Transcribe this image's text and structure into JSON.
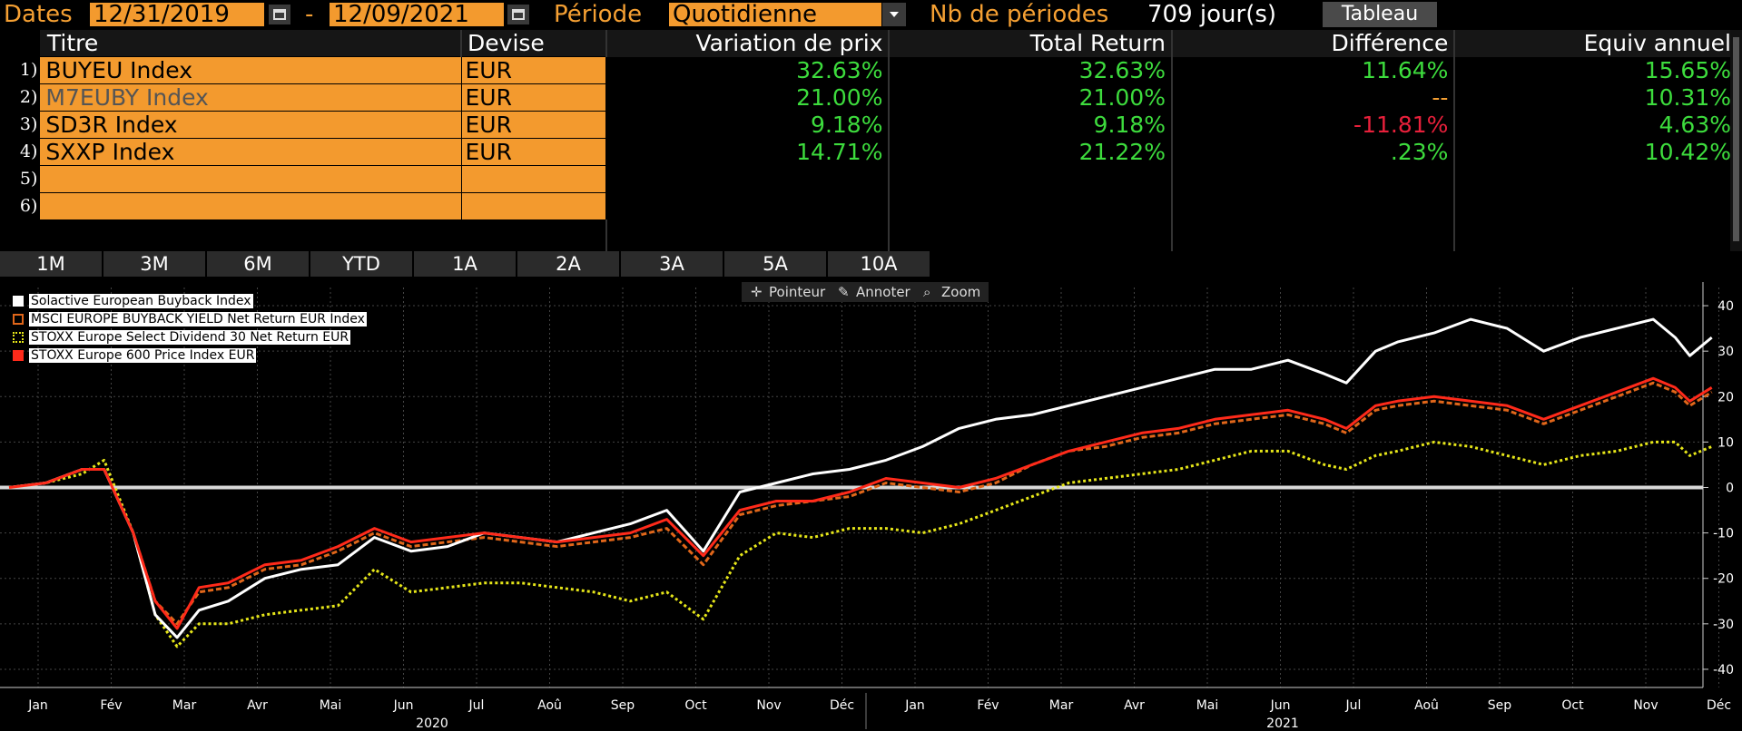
{
  "toolbar": {
    "dates_label": "Dates",
    "start_date": "12/31/2019",
    "dash": "-",
    "end_date": "12/09/2021",
    "period_label": "Période",
    "period_value": "Quotidienne",
    "nb_label": "Nb de périodes",
    "nb_value": "709 jour(s)",
    "table_button": "Tableau"
  },
  "table": {
    "headers": [
      "Titre",
      "Devise",
      "Variation de prix",
      "Total Return",
      "Différence",
      "Equiv annuel"
    ],
    "rows": [
      {
        "n": "1)",
        "title": "BUYEU Index",
        "currency": "EUR",
        "price_var": "32.63%",
        "total_return": "32.63%",
        "diff": "11.64%",
        "annual": "15.65%"
      },
      {
        "n": "2)",
        "title": "M7EUBY Index",
        "currency": "EUR",
        "price_var": "21.00%",
        "total_return": "21.00%",
        "diff": "--",
        "annual": "10.31%"
      },
      {
        "n": "3)",
        "title": "SD3R Index",
        "currency": "EUR",
        "price_var": "9.18%",
        "total_return": "9.18%",
        "diff": "-11.81%",
        "annual": "4.63%"
      },
      {
        "n": "4)",
        "title": "SXXP Index",
        "currency": "EUR",
        "price_var": "14.71%",
        "total_return": "21.22%",
        "diff": ".23%",
        "annual": "10.42%"
      },
      {
        "n": "5)",
        "title": "",
        "currency": "",
        "price_var": "",
        "total_return": "",
        "diff": "",
        "annual": ""
      },
      {
        "n": "6)",
        "title": "",
        "currency": "",
        "price_var": "",
        "total_return": "",
        "diff": "",
        "annual": ""
      }
    ]
  },
  "period_buttons": [
    "1M",
    "3M",
    "6M",
    "YTD",
    "1A",
    "2A",
    "3A",
    "5A",
    "10A"
  ],
  "chart_tools": {
    "pointer": "Pointeur",
    "annotate": "Annoter",
    "zoom": "Zoom"
  },
  "colors": {
    "orange": "#f39a2e",
    "green": "#3ddc3d",
    "red": "#e8203b",
    "white": "#ffffff",
    "yellow": "#e6e619",
    "msci": "#e0661a",
    "stoxx600": "#ff2a1a"
  },
  "chart_data": {
    "type": "line",
    "y_ticks": [
      40,
      30,
      20,
      10,
      0,
      -10,
      -20,
      -30,
      -40
    ],
    "ylim": [
      -44,
      44
    ],
    "x_months": [
      "Jan",
      "Fév",
      "Mar",
      "Avr",
      "Mai",
      "Jun",
      "Jul",
      "Aoû",
      "Sep",
      "Oct",
      "Nov",
      "Déc",
      "Jan",
      "Fév",
      "Mar",
      "Avr",
      "Mai",
      "Jun",
      "Jul",
      "Aoû",
      "Sep",
      "Oct",
      "Nov",
      "Déc"
    ],
    "years": [
      "2020",
      "2021"
    ],
    "x_range": [
      0,
      23.3
    ],
    "grid": true,
    "legend_position": "top-left",
    "series": [
      {
        "name": "Solactive European Buyback Index",
        "color": "#ffffff",
        "dashed": false,
        "points": [
          [
            0,
            0
          ],
          [
            0.5,
            1
          ],
          [
            1,
            4
          ],
          [
            1.3,
            4
          ],
          [
            1.7,
            -10
          ],
          [
            2,
            -28
          ],
          [
            2.3,
            -33
          ],
          [
            2.6,
            -27
          ],
          [
            3,
            -25
          ],
          [
            3.5,
            -20
          ],
          [
            4,
            -18
          ],
          [
            4.5,
            -17
          ],
          [
            5,
            -11
          ],
          [
            5.5,
            -14
          ],
          [
            6,
            -13
          ],
          [
            6.5,
            -10
          ],
          [
            7,
            -11
          ],
          [
            7.5,
            -12
          ],
          [
            8,
            -10
          ],
          [
            8.5,
            -8
          ],
          [
            9,
            -5
          ],
          [
            9.5,
            -14
          ],
          [
            10,
            -1
          ],
          [
            10.5,
            1
          ],
          [
            11,
            3
          ],
          [
            11.5,
            4
          ],
          [
            12,
            6
          ],
          [
            12.5,
            9
          ],
          [
            13,
            13
          ],
          [
            13.5,
            15
          ],
          [
            14,
            16
          ],
          [
            14.5,
            18
          ],
          [
            15,
            20
          ],
          [
            15.5,
            22
          ],
          [
            16,
            24
          ],
          [
            16.5,
            26
          ],
          [
            17,
            26
          ],
          [
            17.5,
            28
          ],
          [
            18,
            25
          ],
          [
            18.3,
            23
          ],
          [
            18.7,
            30
          ],
          [
            19,
            32
          ],
          [
            19.5,
            34
          ],
          [
            20,
            37
          ],
          [
            20.5,
            35
          ],
          [
            21,
            30
          ],
          [
            21.5,
            33
          ],
          [
            22,
            35
          ],
          [
            22.5,
            37
          ],
          [
            22.8,
            33
          ],
          [
            23,
            29
          ],
          [
            23.3,
            33
          ]
        ]
      },
      {
        "name": "MSCI EUROPE BUYBACK YIELD Net Return EUR Index",
        "color": "#e0661a",
        "dashed": true,
        "points": [
          [
            0,
            0
          ],
          [
            0.5,
            1
          ],
          [
            1,
            4
          ],
          [
            1.3,
            4
          ],
          [
            1.7,
            -10
          ],
          [
            2,
            -25
          ],
          [
            2.3,
            -30
          ],
          [
            2.6,
            -23
          ],
          [
            3,
            -22
          ],
          [
            3.5,
            -18
          ],
          [
            4,
            -17
          ],
          [
            4.5,
            -14
          ],
          [
            5,
            -10
          ],
          [
            5.5,
            -13
          ],
          [
            6,
            -12
          ],
          [
            6.5,
            -11
          ],
          [
            7,
            -12
          ],
          [
            7.5,
            -13
          ],
          [
            8,
            -12
          ],
          [
            8.5,
            -11
          ],
          [
            9,
            -9
          ],
          [
            9.5,
            -17
          ],
          [
            10,
            -6
          ],
          [
            10.5,
            -4
          ],
          [
            11,
            -3
          ],
          [
            11.5,
            -2
          ],
          [
            12,
            1
          ],
          [
            12.5,
            0
          ],
          [
            13,
            -1
          ],
          [
            13.5,
            1
          ],
          [
            14,
            5
          ],
          [
            14.5,
            8
          ],
          [
            15,
            9
          ],
          [
            15.5,
            11
          ],
          [
            16,
            12
          ],
          [
            16.5,
            14
          ],
          [
            17,
            15
          ],
          [
            17.5,
            16
          ],
          [
            18,
            14
          ],
          [
            18.3,
            12
          ],
          [
            18.7,
            17
          ],
          [
            19,
            18
          ],
          [
            19.5,
            19
          ],
          [
            20,
            18
          ],
          [
            20.5,
            17
          ],
          [
            21,
            14
          ],
          [
            21.5,
            17
          ],
          [
            22,
            20
          ],
          [
            22.5,
            23
          ],
          [
            22.8,
            21
          ],
          [
            23,
            18
          ],
          [
            23.3,
            21
          ]
        ]
      },
      {
        "name": "STOXX Europe Select Dividend 30 Net Return EUR",
        "color": "#e6e619",
        "dashed": true,
        "points": [
          [
            0,
            0
          ],
          [
            0.5,
            1
          ],
          [
            1,
            3
          ],
          [
            1.3,
            6
          ],
          [
            1.7,
            -10
          ],
          [
            2,
            -28
          ],
          [
            2.3,
            -35
          ],
          [
            2.6,
            -30
          ],
          [
            3,
            -30
          ],
          [
            3.5,
            -28
          ],
          [
            4,
            -27
          ],
          [
            4.5,
            -26
          ],
          [
            5,
            -18
          ],
          [
            5.5,
            -23
          ],
          [
            6,
            -22
          ],
          [
            6.5,
            -21
          ],
          [
            7,
            -21
          ],
          [
            7.5,
            -22
          ],
          [
            8,
            -23
          ],
          [
            8.5,
            -25
          ],
          [
            9,
            -23
          ],
          [
            9.5,
            -29
          ],
          [
            10,
            -15
          ],
          [
            10.5,
            -10
          ],
          [
            11,
            -11
          ],
          [
            11.5,
            -9
          ],
          [
            12,
            -9
          ],
          [
            12.5,
            -10
          ],
          [
            13,
            -8
          ],
          [
            13.5,
            -5
          ],
          [
            14,
            -2
          ],
          [
            14.5,
            1
          ],
          [
            15,
            2
          ],
          [
            15.5,
            3
          ],
          [
            16,
            4
          ],
          [
            16.5,
            6
          ],
          [
            17,
            8
          ],
          [
            17.5,
            8
          ],
          [
            18,
            5
          ],
          [
            18.3,
            4
          ],
          [
            18.7,
            7
          ],
          [
            19,
            8
          ],
          [
            19.5,
            10
          ],
          [
            20,
            9
          ],
          [
            20.5,
            7
          ],
          [
            21,
            5
          ],
          [
            21.5,
            7
          ],
          [
            22,
            8
          ],
          [
            22.5,
            10
          ],
          [
            22.8,
            10
          ],
          [
            23,
            7
          ],
          [
            23.3,
            9
          ]
        ]
      },
      {
        "name": "STOXX Europe 600 Price Index EUR",
        "color": "#ff2a1a",
        "dashed": false,
        "points": [
          [
            0,
            0
          ],
          [
            0.5,
            1
          ],
          [
            1,
            4
          ],
          [
            1.3,
            4
          ],
          [
            1.7,
            -10
          ],
          [
            2,
            -25
          ],
          [
            2.3,
            -31
          ],
          [
            2.6,
            -22
          ],
          [
            3,
            -21
          ],
          [
            3.5,
            -17
          ],
          [
            4,
            -16
          ],
          [
            4.5,
            -13
          ],
          [
            5,
            -9
          ],
          [
            5.5,
            -12
          ],
          [
            6,
            -11
          ],
          [
            6.5,
            -10
          ],
          [
            7,
            -11
          ],
          [
            7.5,
            -12
          ],
          [
            8,
            -11
          ],
          [
            8.5,
            -10
          ],
          [
            9,
            -7
          ],
          [
            9.5,
            -15
          ],
          [
            10,
            -5
          ],
          [
            10.5,
            -3
          ],
          [
            11,
            -3
          ],
          [
            11.5,
            -1
          ],
          [
            12,
            2
          ],
          [
            12.5,
            1
          ],
          [
            13,
            0
          ],
          [
            13.5,
            2
          ],
          [
            14,
            5
          ],
          [
            14.5,
            8
          ],
          [
            15,
            10
          ],
          [
            15.5,
            12
          ],
          [
            16,
            13
          ],
          [
            16.5,
            15
          ],
          [
            17,
            16
          ],
          [
            17.5,
            17
          ],
          [
            18,
            15
          ],
          [
            18.3,
            13
          ],
          [
            18.7,
            18
          ],
          [
            19,
            19
          ],
          [
            19.5,
            20
          ],
          [
            20,
            19
          ],
          [
            20.5,
            18
          ],
          [
            21,
            15
          ],
          [
            21.5,
            18
          ],
          [
            22,
            21
          ],
          [
            22.5,
            24
          ],
          [
            22.8,
            22
          ],
          [
            23,
            19
          ],
          [
            23.3,
            22
          ]
        ]
      }
    ]
  }
}
